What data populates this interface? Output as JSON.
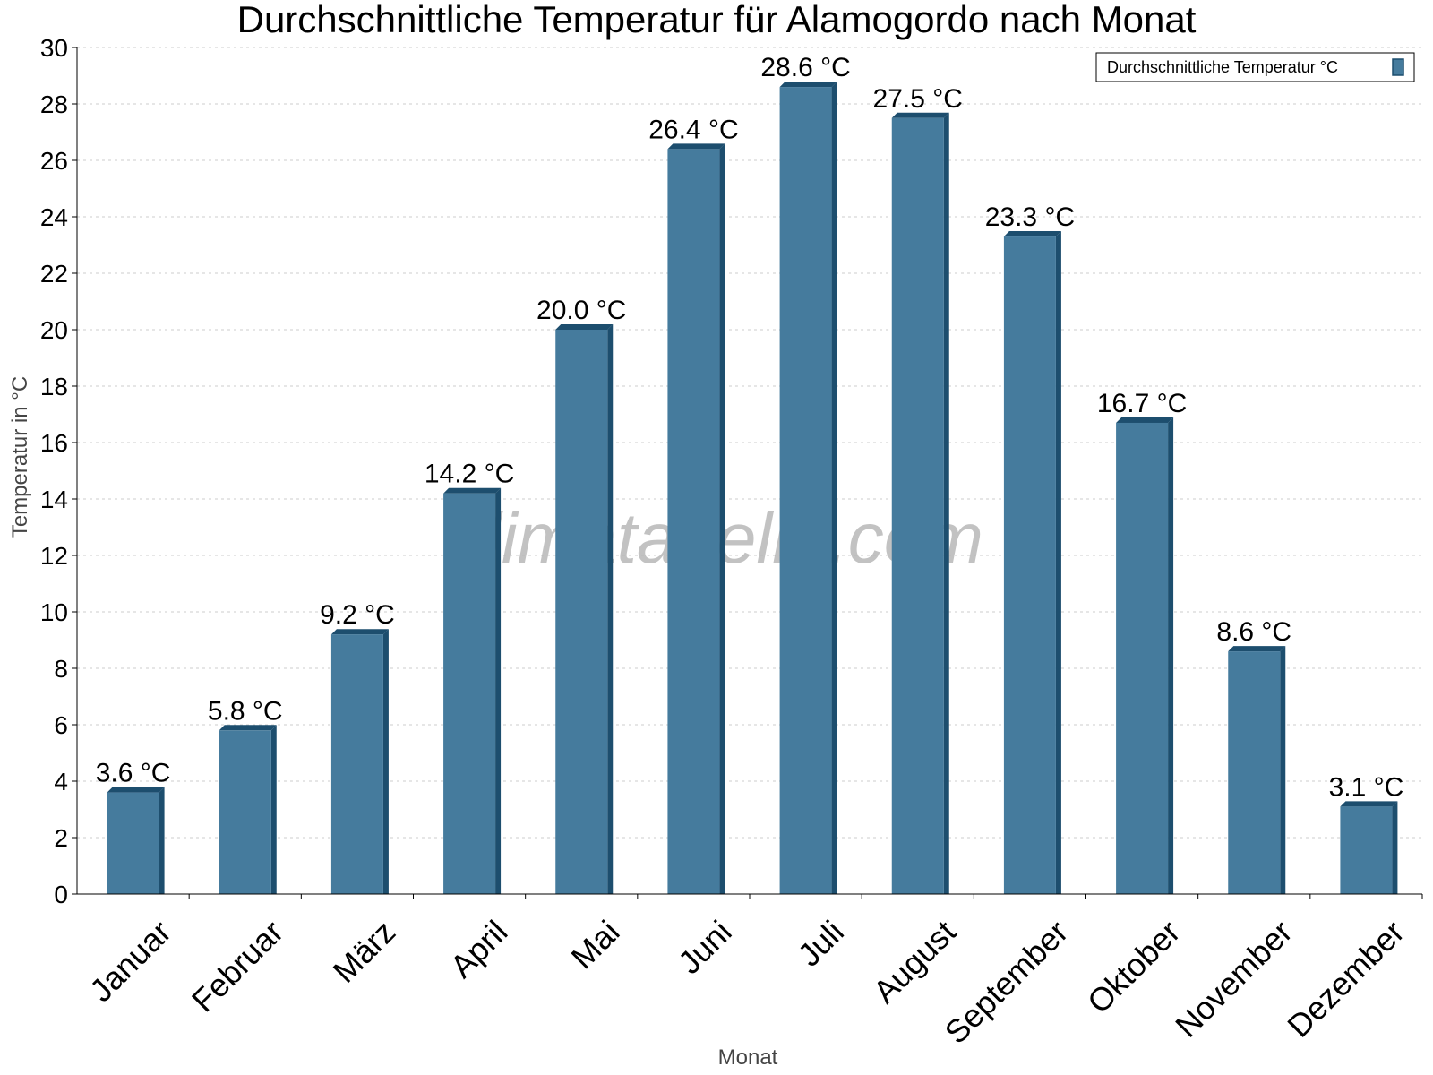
{
  "chart_data": {
    "type": "bar",
    "title": "Durchschnittliche Temperatur für Alamogordo nach Monat",
    "xlabel": "Monat",
    "ylabel": "Temperatur in °C",
    "categories": [
      "Januar",
      "Februar",
      "März",
      "April",
      "Mai",
      "Juni",
      "Juli",
      "August",
      "September",
      "Oktober",
      "November",
      "Dezember"
    ],
    "series": [
      {
        "name": "Durchschnittliche Temperatur °C",
        "values": [
          3.6,
          5.8,
          9.2,
          14.2,
          20.0,
          26.4,
          28.6,
          27.5,
          23.3,
          16.7,
          8.6,
          3.1
        ],
        "labels": [
          "3.6 °C",
          "5.8 °C",
          "9.2 °C",
          "14.2 °C",
          "20.0 °C",
          "26.4 °C",
          "28.6 °C",
          "27.5 °C",
          "23.3 °C",
          "16.7 °C",
          "8.6 °C",
          "3.1 °C"
        ]
      }
    ],
    "ylim": [
      0,
      30
    ],
    "yticks": [
      0,
      2,
      4,
      6,
      8,
      10,
      12,
      14,
      16,
      18,
      20,
      22,
      24,
      26,
      28,
      30
    ],
    "grid": true,
    "legend": "top-right",
    "colors": {
      "bar": "#457b9d",
      "bar_side": "#1d4e6e",
      "grid": "#cccccc"
    },
    "watermark": "klimatabelle.com"
  }
}
